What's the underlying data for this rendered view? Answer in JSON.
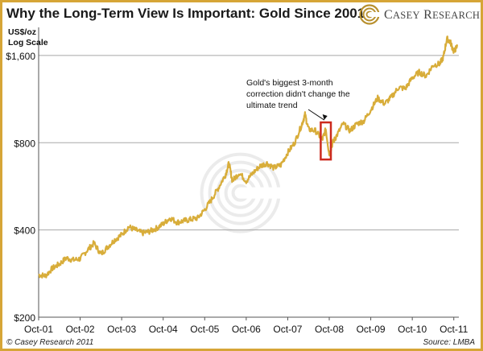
{
  "title": "Why the Long-Term View Is Important: Gold Since 2001",
  "logo": {
    "first_letter": "C",
    "first_rest": "ASEY",
    "second_letter": "R",
    "second_rest": "ESEARCH"
  },
  "copyright": "© Casey Research 2011",
  "source": "Source: LMBA",
  "colors": {
    "line": "#d8ad3a",
    "border": "#d6a537",
    "highlight_box": "#cc2a1e",
    "grid": "#a8a8a8"
  },
  "chart_data": {
    "type": "line",
    "title": "Why the Long-Term View Is Important: Gold Since 2001",
    "ylabel": "US$/oz",
    "ylabel_sub": "Log Scale",
    "yscale": "log",
    "ylim": [
      200,
      2000
    ],
    "yticks": [
      200,
      400,
      800,
      1600
    ],
    "ytick_labels": [
      "$200",
      "$400",
      "$800",
      "$1,600"
    ],
    "xlim": [
      "2001-10-01",
      "2011-11-15"
    ],
    "xticks": [
      "2001-10",
      "2002-10",
      "2003-10",
      "2004-10",
      "2005-10",
      "2006-10",
      "2007-10",
      "2008-10",
      "2009-10",
      "2010-10",
      "2011-10"
    ],
    "xtick_labels": [
      "Oct-01",
      "Oct-02",
      "Oct-03",
      "Oct-04",
      "Oct-05",
      "Oct-06",
      "Oct-07",
      "Oct-08",
      "Oct-09",
      "Oct-10",
      "Oct-11"
    ],
    "grid": "horizontal",
    "series": [
      {
        "x": [
          "2001-10",
          "2001-12",
          "2002-02",
          "2002-04",
          "2002-06",
          "2002-08",
          "2002-10",
          "2002-12",
          "2003-02",
          "2003-04",
          "2003-06",
          "2003-08",
          "2003-10",
          "2003-12",
          "2004-02",
          "2004-04",
          "2004-06",
          "2004-08",
          "2004-10",
          "2004-12",
          "2005-02",
          "2005-04",
          "2005-06",
          "2005-08",
          "2005-10",
          "2005-12",
          "2006-02",
          "2006-04",
          "2006-05",
          "2006-06",
          "2006-08",
          "2006-10",
          "2006-12",
          "2007-02",
          "2007-04",
          "2007-06",
          "2007-08",
          "2007-10",
          "2007-12",
          "2008-02",
          "2008-03",
          "2008-04",
          "2008-06",
          "2008-08",
          "2008-09",
          "2008-10",
          "2008-11",
          "2008-12",
          "2009-02",
          "2009-04",
          "2009-06",
          "2009-08",
          "2009-10",
          "2009-12",
          "2010-02",
          "2010-04",
          "2010-06",
          "2010-08",
          "2010-10",
          "2010-12",
          "2011-02",
          "2011-04",
          "2011-06",
          "2011-07",
          "2011-08",
          "2011-09",
          "2011-10",
          "2011-11"
        ],
        "values": [
          280,
          278,
          295,
          305,
          320,
          315,
          318,
          340,
          360,
          330,
          350,
          370,
          385,
          410,
          400,
          390,
          395,
          405,
          420,
          440,
          425,
          430,
          435,
          440,
          470,
          510,
          560,
          620,
          680,
          590,
          630,
          590,
          630,
          665,
          680,
          655,
          670,
          740,
          800,
          920,
          1000,
          890,
          880,
          820,
          890,
          730,
          800,
          840,
          930,
          880,
          930,
          950,
          1040,
          1140,
          1090,
          1150,
          1240,
          1230,
          1340,
          1400,
          1360,
          1480,
          1500,
          1580,
          1830,
          1780,
          1650,
          1720
        ]
      }
    ],
    "annotations": [
      {
        "text": [
          "Gold's biggest 3-month",
          "correction didn't change the",
          "ultimate trend"
        ]
      }
    ]
  }
}
